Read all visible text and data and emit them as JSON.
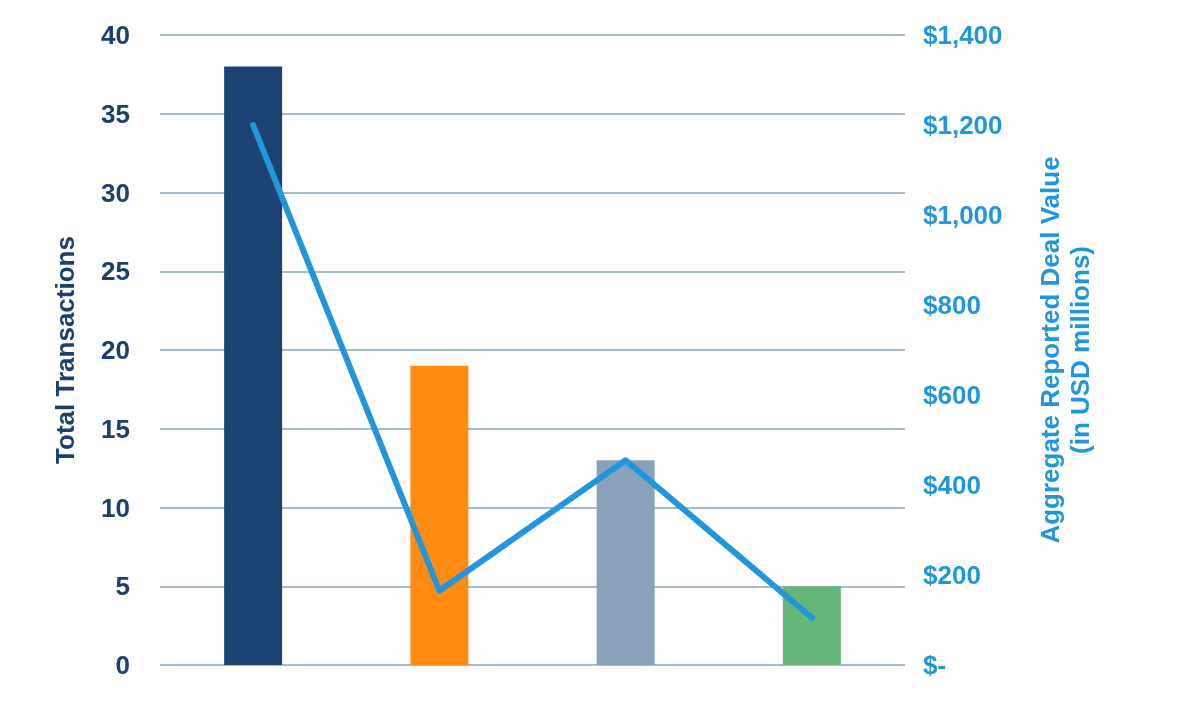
{
  "chart_data": {
    "type": "bar",
    "ylabel": "Total Transactions",
    "y2label": "Aggregate Reported Deal Value (in USD millions)",
    "categories": [
      null,
      null,
      null,
      null
    ],
    "series": [
      {
        "values": [
          38,
          19,
          13,
          5
        ],
        "colors": [
          "#1b4270",
          "#ff8b13",
          "#87a2ba",
          "#65b779"
        ]
      },
      {
        "type": "line",
        "axis": "y2",
        "color": "#2196dc",
        "values": [
          1200,
          165,
          455,
          105
        ],
        "marker": "none",
        "line_style": "solid"
      }
    ],
    "ylim": [
      0,
      40
    ],
    "yticks": [
      0,
      5,
      10,
      15,
      20,
      25,
      30,
      35,
      40
    ],
    "y2lim": [
      0,
      1400
    ],
    "y2ticks": [
      {
        "value": 0,
        "label": "$-"
      },
      {
        "value": 200,
        "label": "$200"
      },
      {
        "value": 400,
        "label": "$400"
      },
      {
        "value": 600,
        "label": "$600"
      },
      {
        "value": 800,
        "label": "$800"
      },
      {
        "value": 1000,
        "label": "$1,000"
      },
      {
        "value": 1200,
        "label": "$1,200"
      },
      {
        "value": 1400,
        "label": "$1,400"
      }
    ],
    "grid": "y"
  }
}
